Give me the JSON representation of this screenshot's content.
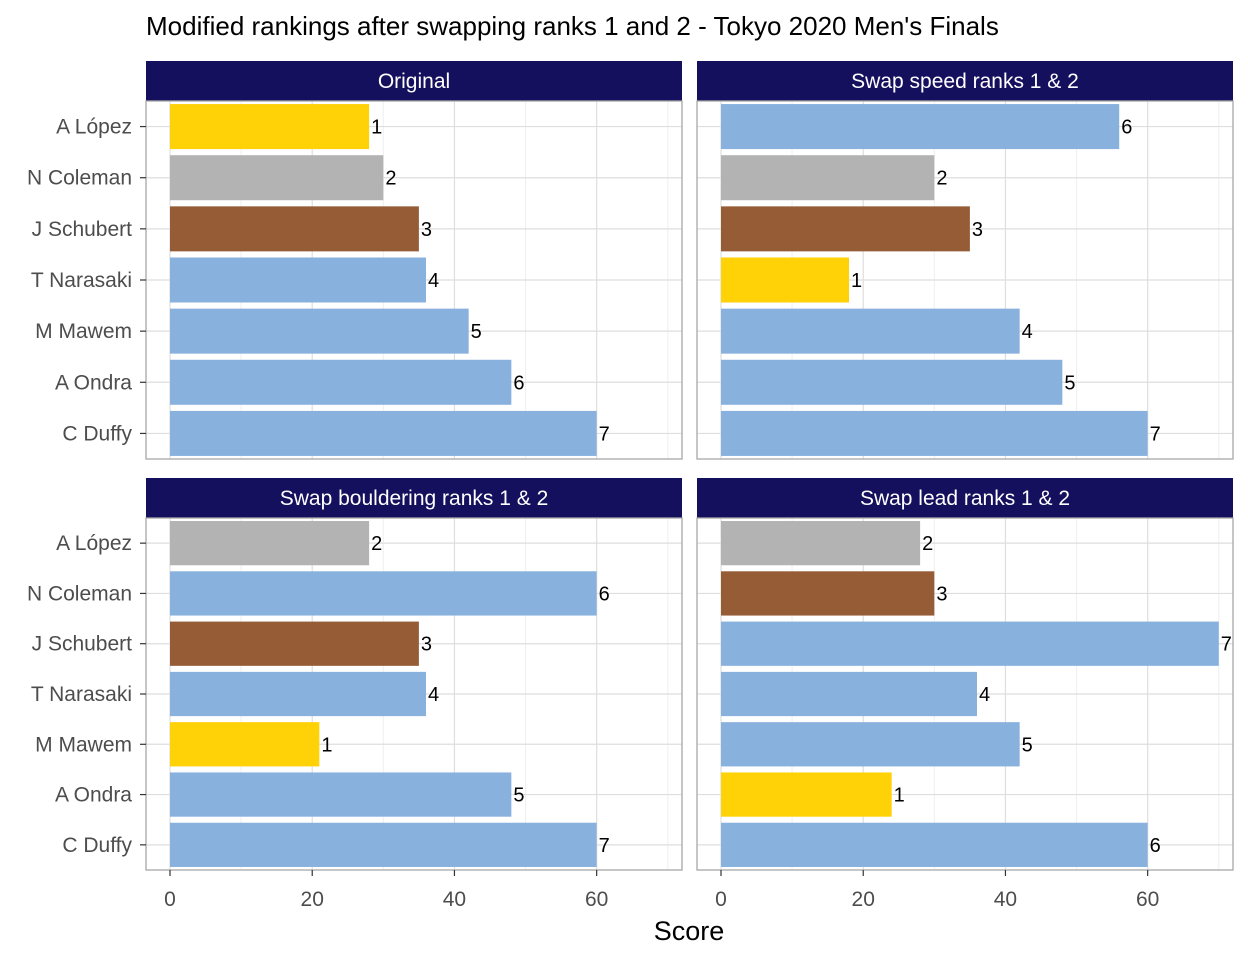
{
  "title": "Modified rankings after swapping ranks 1 and 2 - Tokyo 2020 Men's Finals",
  "xlabel": "Score",
  "colors": {
    "strip_bg": "#14105e",
    "strip_text": "#ffffff",
    "panel_border": "#a8a8a8",
    "grid_major": "#dedede",
    "grid_minor": "#efefef",
    "rank_colors": {
      "1": "#ffd107",
      "2": "#b3b3b3",
      "3": "#955c36",
      "other": "#88b1de"
    }
  },
  "chart_data": {
    "type": "bar",
    "orientation": "horizontal",
    "categories": [
      "A López",
      "N Coleman",
      "J Schubert",
      "T Narasaki",
      "M Mawem",
      "A Ondra",
      "C Duffy"
    ],
    "xlim": [
      0,
      72
    ],
    "xticks": [
      0,
      20,
      40,
      60
    ],
    "xlabel": "Score",
    "grid": true,
    "panels": [
      {
        "label": "Original",
        "values": [
          28,
          30,
          35,
          36,
          42,
          48,
          60
        ],
        "ranks": [
          "1",
          "2",
          "3",
          "4",
          "5",
          "6",
          "7"
        ]
      },
      {
        "label": "Swap speed ranks 1 & 2",
        "values": [
          56,
          30,
          35,
          18,
          42,
          48,
          60
        ],
        "ranks": [
          "6",
          "2",
          "3",
          "1",
          "4",
          "5",
          "7"
        ]
      },
      {
        "label": "Swap bouldering ranks 1 & 2",
        "values": [
          28,
          60,
          35,
          36,
          21,
          48,
          60
        ],
        "ranks": [
          "2",
          "6",
          "3",
          "4",
          "1",
          "5",
          "7"
        ]
      },
      {
        "label": "Swap lead ranks 1 & 2",
        "values": [
          28,
          30,
          70,
          36,
          42,
          24,
          60
        ],
        "ranks": [
          "2",
          "3",
          "7",
          "4",
          "5",
          "1",
          "6"
        ]
      }
    ]
  }
}
